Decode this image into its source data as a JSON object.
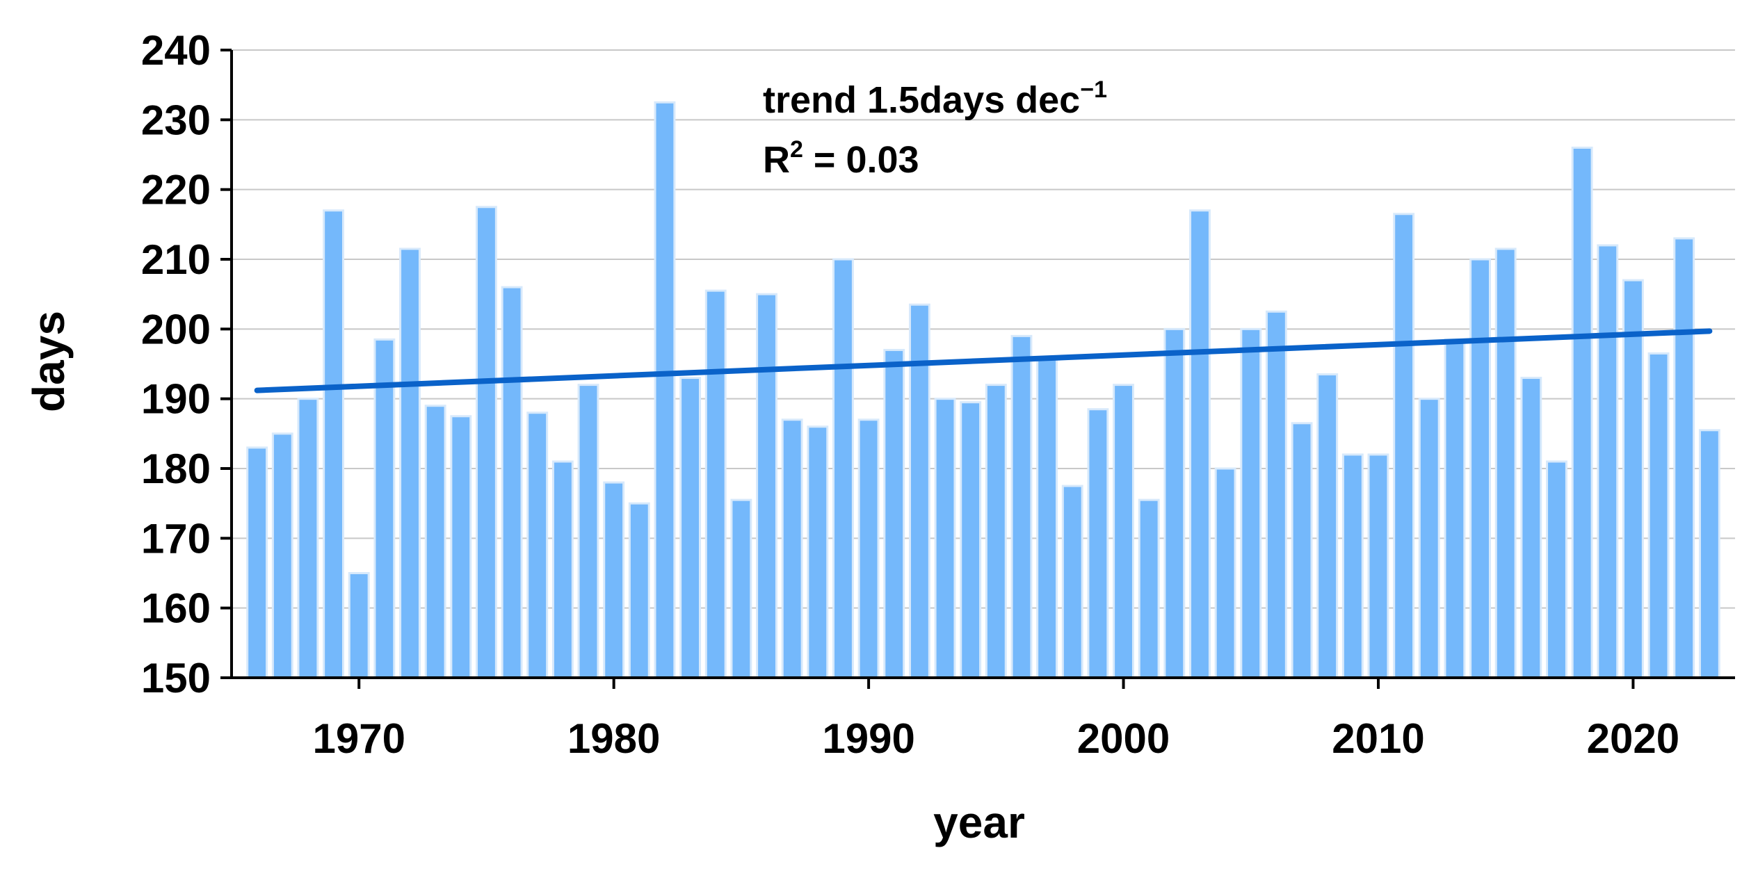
{
  "chart_data": {
    "type": "bar",
    "xlabel": "year",
    "ylabel": "days",
    "ylim": [
      150,
      240
    ],
    "yticks": [
      150,
      160,
      170,
      180,
      190,
      200,
      210,
      220,
      230,
      240
    ],
    "xlim": [
      1965,
      2024
    ],
    "xticks": [
      1970,
      1980,
      1990,
      2000,
      2010,
      2020
    ],
    "grid": true,
    "bar_color": "#74b8fb",
    "bar_edge_color": "#d7e9fb",
    "trend_color": "#0a62c9",
    "annotation_trend_text": "trend 1.5days dec",
    "annotation_trend_sup": "−1",
    "annotation_r2_text_r": "R",
    "annotation_r2_sup": "2",
    "annotation_r2_rest": " = 0.03",
    "years": [
      1966,
      1967,
      1968,
      1969,
      1970,
      1971,
      1972,
      1973,
      1974,
      1975,
      1976,
      1977,
      1978,
      1979,
      1980,
      1981,
      1982,
      1983,
      1984,
      1985,
      1986,
      1987,
      1988,
      1989,
      1990,
      1991,
      1992,
      1993,
      1994,
      1995,
      1996,
      1997,
      1998,
      1999,
      2000,
      2001,
      2002,
      2003,
      2004,
      2005,
      2006,
      2007,
      2008,
      2009,
      2010,
      2011,
      2012,
      2013,
      2014,
      2015,
      2016,
      2017,
      2018,
      2019,
      2020,
      2021,
      2022,
      2023
    ],
    "values": [
      183,
      185,
      190,
      217,
      165,
      198.5,
      211.5,
      189,
      187.5,
      217.5,
      206,
      188,
      181,
      192,
      178,
      175,
      232.5,
      193,
      205.5,
      175.5,
      205,
      187,
      186,
      210,
      187,
      197,
      203.5,
      190,
      189.5,
      192,
      199,
      196,
      177.5,
      188.5,
      192,
      175.5,
      200,
      217,
      180,
      200,
      202.5,
      186.5,
      193.5,
      182,
      182,
      216.5,
      190,
      198.5,
      210,
      211.5,
      193,
      181,
      226,
      212,
      207,
      196.5,
      213,
      185.5
    ],
    "trend": {
      "x": [
        1966,
        2023
      ],
      "y": [
        191.2,
        199.7
      ]
    }
  }
}
